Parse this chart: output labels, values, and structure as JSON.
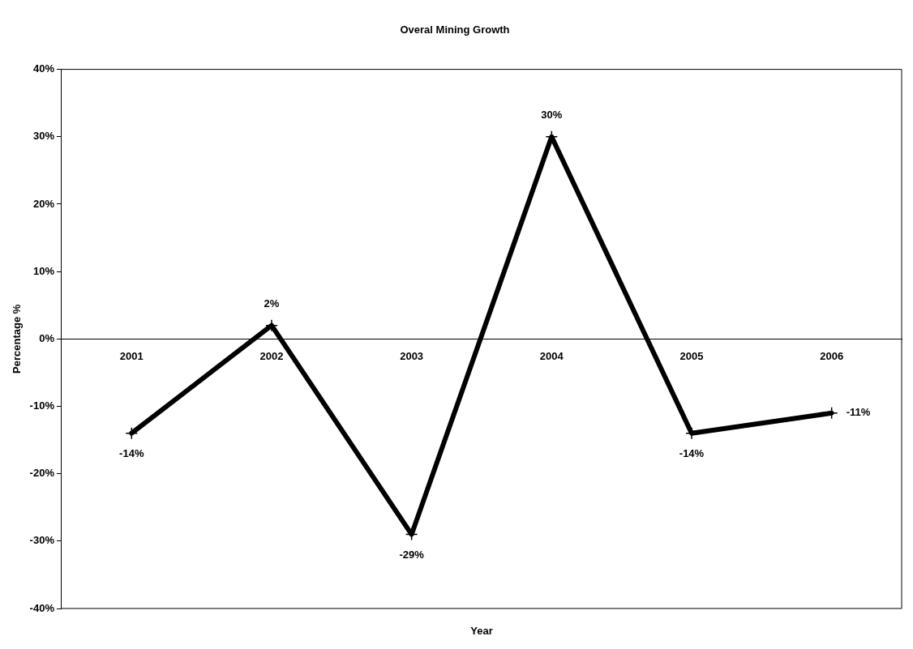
{
  "chart_data": {
    "type": "line",
    "title": "Overal Mining Growth",
    "xlabel": "Year",
    "ylabel": "Percentage %",
    "categories": [
      "2001",
      "2002",
      "2003",
      "2004",
      "2005",
      "2006"
    ],
    "series": [
      {
        "color": "#000000",
        "values": [
          -14,
          2,
          -29,
          30,
          -14,
          -11
        ],
        "value_labels": [
          "-14%",
          "2%",
          "-29%",
          "30%",
          "-14%",
          "-11%"
        ]
      }
    ],
    "ylim": [
      -40,
      40
    ],
    "yticks": [
      {
        "value": -40,
        "label": "-40%"
      },
      {
        "value": -30,
        "label": "-30%"
      },
      {
        "value": -20,
        "label": "-20%"
      },
      {
        "value": -10,
        "label": "-10%"
      },
      {
        "value": 0,
        "label": "0%"
      },
      {
        "value": 10,
        "label": "10%"
      },
      {
        "value": 20,
        "label": "20%"
      },
      {
        "value": 30,
        "label": "30%"
      },
      {
        "value": 40,
        "label": "40%"
      }
    ],
    "grid": false,
    "legend": false,
    "marker": "cross",
    "line_style": "solid"
  }
}
